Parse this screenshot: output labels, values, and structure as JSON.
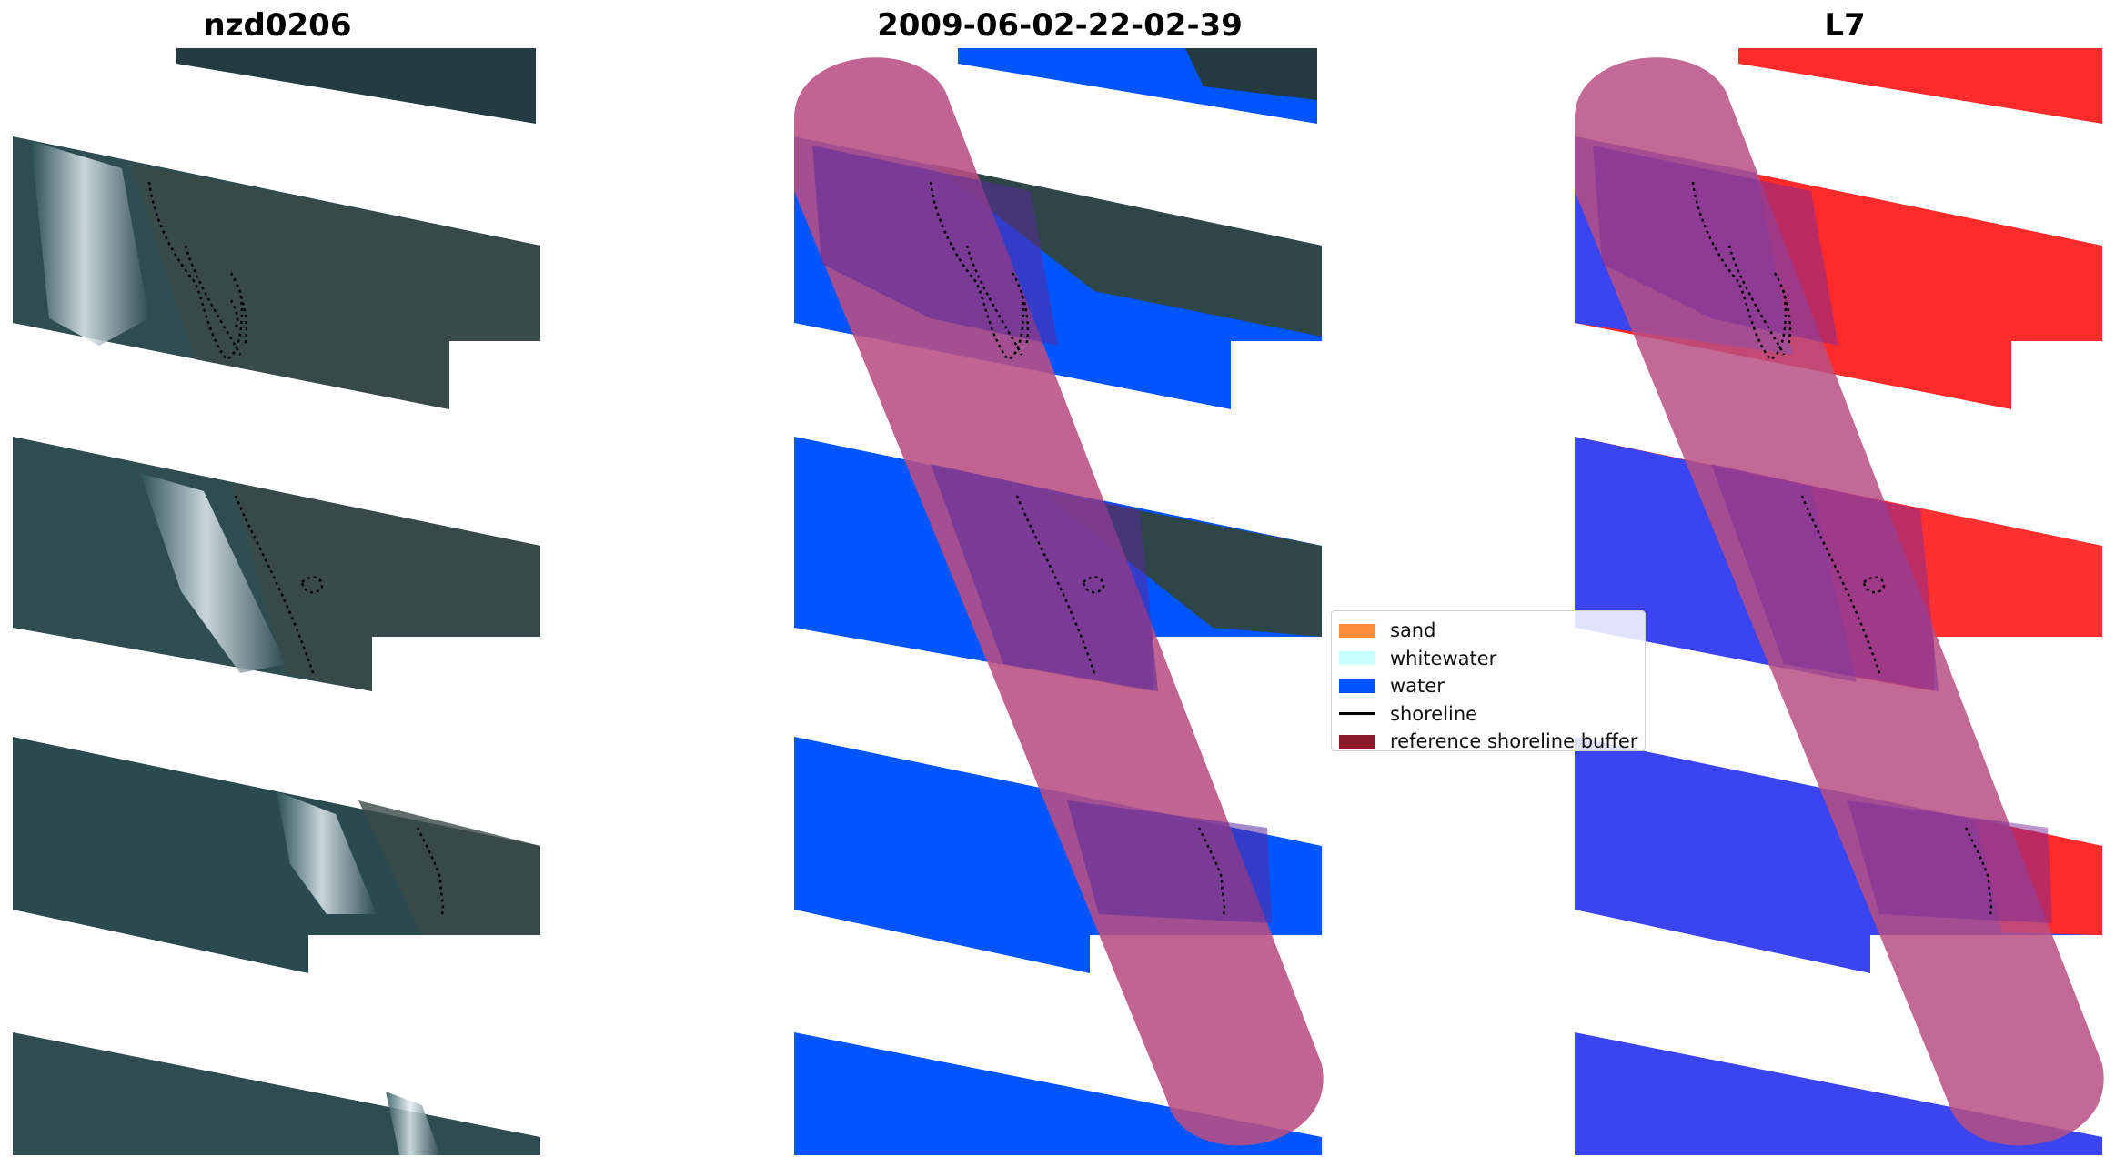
{
  "panels": [
    {
      "title": "nzd0206"
    },
    {
      "title": "2009-06-02-22-02-39"
    },
    {
      "title": "L7"
    }
  ],
  "legend": {
    "items": [
      {
        "label": "sand",
        "color": "#ff8c3a",
        "kind": "patch"
      },
      {
        "label": "whitewater",
        "color": "#c8ffff",
        "kind": "patch"
      },
      {
        "label": "water",
        "color": "#0055ff",
        "kind": "patch"
      },
      {
        "label": "shoreline",
        "color": "#000000",
        "kind": "line"
      },
      {
        "label": "reference shoreline buffer",
        "color": "#8b1a2b",
        "kind": "patch"
      }
    ]
  },
  "colors": {
    "rgb_dark": "#2c4448",
    "rgb_sea": "#2b5156",
    "surf": "#d8e6ea",
    "water": "#0055ff",
    "buffer": "#b94f82",
    "index_red": "#ff2424",
    "index_blue": "#3a44f0"
  }
}
